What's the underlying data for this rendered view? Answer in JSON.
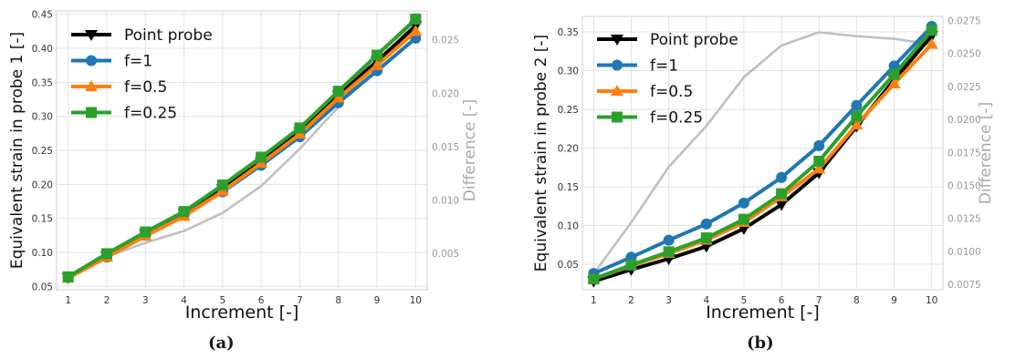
{
  "chart_data": [
    {
      "type": "line",
      "caption": "(a)",
      "xlabel": "Increment [-]",
      "ylabel": "Equivalent strain in probe 1 [-]",
      "y2label": "Difference [-]",
      "x": [
        1,
        2,
        3,
        4,
        5,
        6,
        7,
        8,
        9,
        10
      ],
      "xticks": [
        "1",
        "2",
        "3",
        "4",
        "5",
        "6",
        "7",
        "8",
        "9",
        "10"
      ],
      "ylim": [
        0.045,
        0.455
      ],
      "yticks": [
        "0.05",
        "0.10",
        "0.15",
        "0.20",
        "0.25",
        "0.30",
        "0.35",
        "0.40",
        "0.45"
      ],
      "y2lim": [
        0.0016,
        0.0277
      ],
      "y2ticks": [
        "0.005",
        "0.010",
        "0.015",
        "0.020",
        "0.025"
      ],
      "grid": true,
      "legend_position": "top-left",
      "series": [
        {
          "name": "Point probe",
          "color": "#000000",
          "marker": "triangle-down",
          "values": [
            0.063,
            0.094,
            0.127,
            0.157,
            0.193,
            0.233,
            0.277,
            0.331,
            0.381,
            0.433
          ]
        },
        {
          "name": "f=1",
          "color": "#1f77b4",
          "marker": "circle",
          "values": [
            0.063,
            0.093,
            0.125,
            0.155,
            0.189,
            0.228,
            0.27,
            0.32,
            0.367,
            0.415
          ]
        },
        {
          "name": "f=0.5",
          "color": "#ff7f0e",
          "marker": "triangle-up",
          "values": [
            0.062,
            0.093,
            0.124,
            0.153,
            0.19,
            0.231,
            0.274,
            0.327,
            0.375,
            0.425
          ]
        },
        {
          "name": "f=0.25",
          "color": "#2ca02c",
          "marker": "square",
          "values": [
            0.064,
            0.098,
            0.13,
            0.16,
            0.199,
            0.24,
            0.283,
            0.337,
            0.39,
            0.443
          ]
        }
      ],
      "difference_series": {
        "color": "#c0c0c0",
        "values": [
          0.0028,
          0.0047,
          0.006,
          0.0071,
          0.0088,
          0.0113,
          0.0148,
          0.0187,
          0.0238,
          0.0265
        ]
      }
    },
    {
      "type": "line",
      "caption": "(b)",
      "xlabel": "Increment [-]",
      "ylabel": "Equivalent strain in probe 2 [-]",
      "y2label": "Difference [-]",
      "x": [
        1,
        2,
        3,
        4,
        5,
        6,
        7,
        8,
        9,
        10
      ],
      "xticks": [
        "1",
        "2",
        "3",
        "4",
        "5",
        "6",
        "7",
        "8",
        "9",
        "10"
      ],
      "ylim": [
        0.017,
        0.37
      ],
      "yticks": [
        "0.05",
        "0.10",
        "0.15",
        "0.20",
        "0.25",
        "0.30",
        "0.35"
      ],
      "y2lim": [
        0.0071,
        0.0278
      ],
      "y2ticks": [
        "0.0075",
        "0.0100",
        "0.0125",
        "0.0150",
        "0.0175",
        "0.0200",
        "0.0225",
        "0.0250",
        "0.0275"
      ],
      "grid": true,
      "legend_position": "top-left",
      "series": [
        {
          "name": "Point probe",
          "color": "#000000",
          "marker": "triangle-down",
          "values": [
            0.028,
            0.043,
            0.057,
            0.073,
            0.096,
            0.127,
            0.168,
            0.228,
            0.288,
            0.345
          ]
        },
        {
          "name": "f=1",
          "color": "#1f77b4",
          "marker": "circle",
          "values": [
            0.038,
            0.059,
            0.081,
            0.102,
            0.129,
            0.162,
            0.203,
            0.255,
            0.306,
            0.357
          ]
        },
        {
          "name": "f=0.5",
          "color": "#ff7f0e",
          "marker": "triangle-up",
          "values": [
            0.031,
            0.048,
            0.064,
            0.081,
            0.104,
            0.137,
            0.173,
            0.23,
            0.283,
            0.334
          ]
        },
        {
          "name": "f=0.25",
          "color": "#2ca02c",
          "marker": "square",
          "values": [
            0.031,
            0.049,
            0.066,
            0.084,
            0.108,
            0.141,
            0.183,
            0.241,
            0.295,
            0.352
          ]
        }
      ],
      "difference_series": {
        "color": "#c0c0c0",
        "values": [
          0.0083,
          0.0122,
          0.0164,
          0.0195,
          0.0232,
          0.0256,
          0.0266,
          0.0263,
          0.0261,
          0.0257
        ]
      }
    }
  ]
}
